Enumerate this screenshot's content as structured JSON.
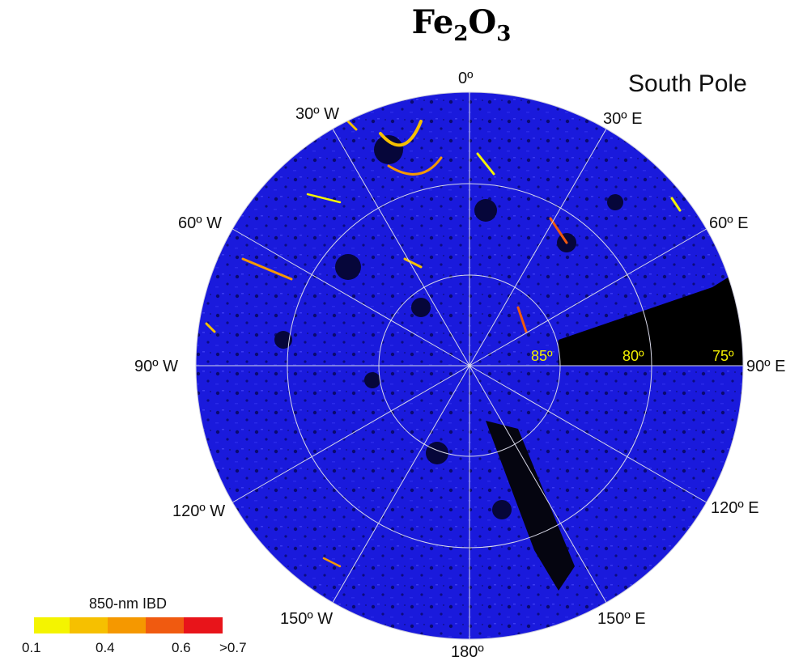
{
  "title": {
    "main": "Fe",
    "sub1": "2",
    "mid": "O",
    "sub2": "3"
  },
  "region_label": "South Pole",
  "longitude_labels": [
    {
      "text": "0º",
      "deg": 0
    },
    {
      "text": "30º E",
      "deg": 30
    },
    {
      "text": "60º E",
      "deg": 60
    },
    {
      "text": "90º E",
      "deg": 90
    },
    {
      "text": "120º E",
      "deg": 120
    },
    {
      "text": "150º E",
      "deg": 150
    },
    {
      "text": "180º",
      "deg": 180
    },
    {
      "text": "150º W",
      "deg": 210
    },
    {
      "text": "120º W",
      "deg": 240
    },
    {
      "text": "90º W",
      "deg": 270
    },
    {
      "text": "60º W",
      "deg": 300
    },
    {
      "text": "30º W",
      "deg": 330
    }
  ],
  "latitude_labels": [
    "85º",
    "80º",
    "75º"
  ],
  "legend": {
    "title": "850-nm IBD",
    "ticks": [
      "0.1",
      "0.4",
      "0.6",
      ">0.7"
    ],
    "colors": [
      "#f4f400",
      "#f6c000",
      "#f59800",
      "#f05a10",
      "#e8141a"
    ]
  },
  "colors": {
    "background": "#1a1adc",
    "gaps": "#000000",
    "grid": "#d8d8e8"
  }
}
